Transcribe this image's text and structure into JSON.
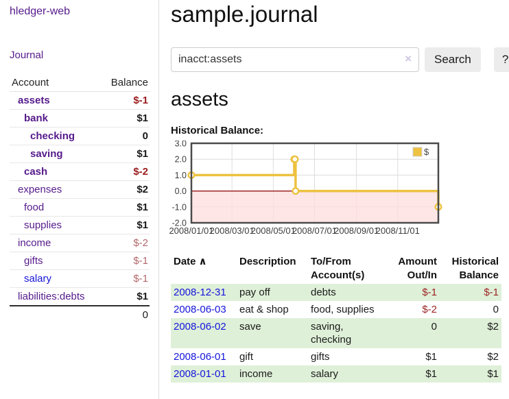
{
  "colors": {
    "link_purple": "#551a8b",
    "link_blue": "#1414dc",
    "negative_strong": "#9a1c1c",
    "negative_soft": "#b2676c",
    "row_stripe_green": "#dff0d8",
    "chart_series_yellow": "#edc240",
    "chart_negative_region": "#ffdddd",
    "chart_zero_line": "#8b0000"
  },
  "icons": {
    "sort_asc": "∧",
    "clear_search": "×"
  },
  "sidebar": {
    "brand": "hledger-web",
    "nav": [
      {
        "label": "Journal"
      }
    ],
    "accounts_table": {
      "headers": [
        "Account",
        "Balance"
      ],
      "rows": [
        {
          "account": "assets",
          "balance": "$-1",
          "depth": 1,
          "bold": true
        },
        {
          "account": "bank",
          "balance": "$1",
          "depth": 2,
          "bold": true
        },
        {
          "account": "checking",
          "balance": "0",
          "depth": 3,
          "bold": true
        },
        {
          "account": "saving",
          "balance": "$1",
          "depth": 3,
          "bold": true
        },
        {
          "account": "cash",
          "balance": "$-2",
          "depth": 2,
          "bold": true
        },
        {
          "account": "expenses",
          "balance": "$2",
          "depth": 1,
          "bold": false
        },
        {
          "account": "food",
          "balance": "$1",
          "depth": 2,
          "bold": false
        },
        {
          "account": "supplies",
          "balance": "$1",
          "depth": 2,
          "bold": false
        },
        {
          "account": "income",
          "balance": "$-2",
          "depth": 1,
          "bold": false
        },
        {
          "account": "gifts",
          "balance": "$-1",
          "depth": 2,
          "bold": false
        },
        {
          "account": "salary",
          "balance": "$-1",
          "depth": 2,
          "bold": false,
          "unvisited": true
        },
        {
          "account": "liabilities:debts",
          "balance": "$1",
          "depth": 1,
          "bold": false
        }
      ],
      "total": "0"
    }
  },
  "header": {
    "title": "sample.journal"
  },
  "search": {
    "value": "inacct:assets",
    "button_label": "Search",
    "help_label": "?"
  },
  "account_page": {
    "title": "assets",
    "chart_label": "Historical Balance:"
  },
  "chart_data": {
    "type": "line",
    "step": true,
    "title": "Historical Balance",
    "series": [
      {
        "name": "$",
        "color": "#edc240",
        "points": [
          [
            "2008-01-01",
            1
          ],
          [
            "2008-06-01",
            2
          ],
          [
            "2008-06-02",
            2
          ],
          [
            "2008-06-03",
            0
          ],
          [
            "2008-12-31",
            -1
          ]
        ]
      }
    ],
    "xlim": [
      "2008-01-01",
      "2008-12-31"
    ],
    "ylim": [
      -2,
      3
    ],
    "x_ticks": [
      "2008/01/01",
      "2008/03/01",
      "2008/05/01",
      "2008/07/01",
      "2008/09/01",
      "2008/11/01"
    ],
    "y_ticks": [
      -2.0,
      -1.0,
      0.0,
      1.0,
      2.0,
      3.0
    ],
    "grid": true,
    "legend": {
      "label": "$",
      "position": "top-right"
    },
    "negative_region_color": "#ffdddd",
    "zero_line_color": "#8b0000"
  },
  "register_table": {
    "headers": [
      {
        "label": "Date",
        "sort": "asc"
      },
      {
        "label": "Description"
      },
      {
        "label": "To/From Account(s)"
      },
      {
        "label": "Amount Out/In",
        "align": "right"
      },
      {
        "label": "Historical Balance",
        "align": "right"
      }
    ],
    "rows": [
      {
        "date": "2008-12-31",
        "description": "pay off",
        "accounts": "debts",
        "amount": "$-1",
        "balance": "$-1"
      },
      {
        "date": "2008-06-03",
        "description": "eat & shop",
        "accounts": "food, supplies",
        "amount": "$-2",
        "balance": "0"
      },
      {
        "date": "2008-06-02",
        "description": "save",
        "accounts": "saving, checking",
        "amount": "0",
        "balance": "$2"
      },
      {
        "date": "2008-06-01",
        "description": "gift",
        "accounts": "gifts",
        "amount": "$1",
        "balance": "$2"
      },
      {
        "date": "2008-01-01",
        "description": "income",
        "accounts": "salary",
        "amount": "$1",
        "balance": "$1"
      }
    ]
  }
}
